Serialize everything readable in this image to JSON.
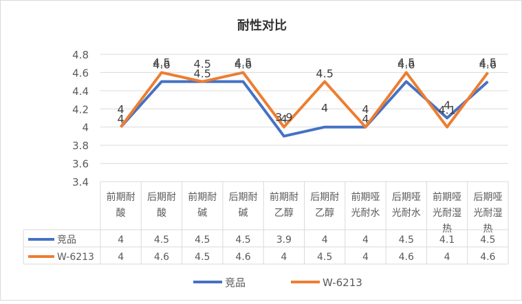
{
  "chart_data": {
    "type": "line",
    "title": "耐性对比",
    "categories": [
      [
        "前期耐",
        "酸"
      ],
      [
        "后期耐",
        "酸"
      ],
      [
        "前期耐",
        "碱"
      ],
      [
        "后期耐",
        "碱"
      ],
      [
        "前期耐",
        "乙醇"
      ],
      [
        "后期耐",
        "乙醇"
      ],
      [
        "前期哑",
        "光耐水"
      ],
      [
        "后期哑",
        "光耐水"
      ],
      [
        "前期哑",
        "光耐湿",
        "热"
      ],
      [
        "后期哑",
        "光耐湿",
        "热"
      ]
    ],
    "series": [
      {
        "name": "竞品",
        "color": "#4472C4",
        "values": [
          4,
          4.5,
          4.5,
          4.5,
          3.9,
          4,
          4,
          4.5,
          4.1,
          4.5
        ]
      },
      {
        "name": "W-6213",
        "color": "#ED7D31",
        "values": [
          4,
          4.6,
          4.5,
          4.6,
          4,
          4.5,
          4,
          4.6,
          4,
          4.6
        ]
      }
    ],
    "ylim": [
      3.4,
      4.8
    ],
    "yticks": [
      3.4,
      3.6,
      3.8,
      4,
      4.2,
      4.4,
      4.6,
      4.8
    ],
    "grid": true,
    "legend": "bottom",
    "data_table": true
  }
}
